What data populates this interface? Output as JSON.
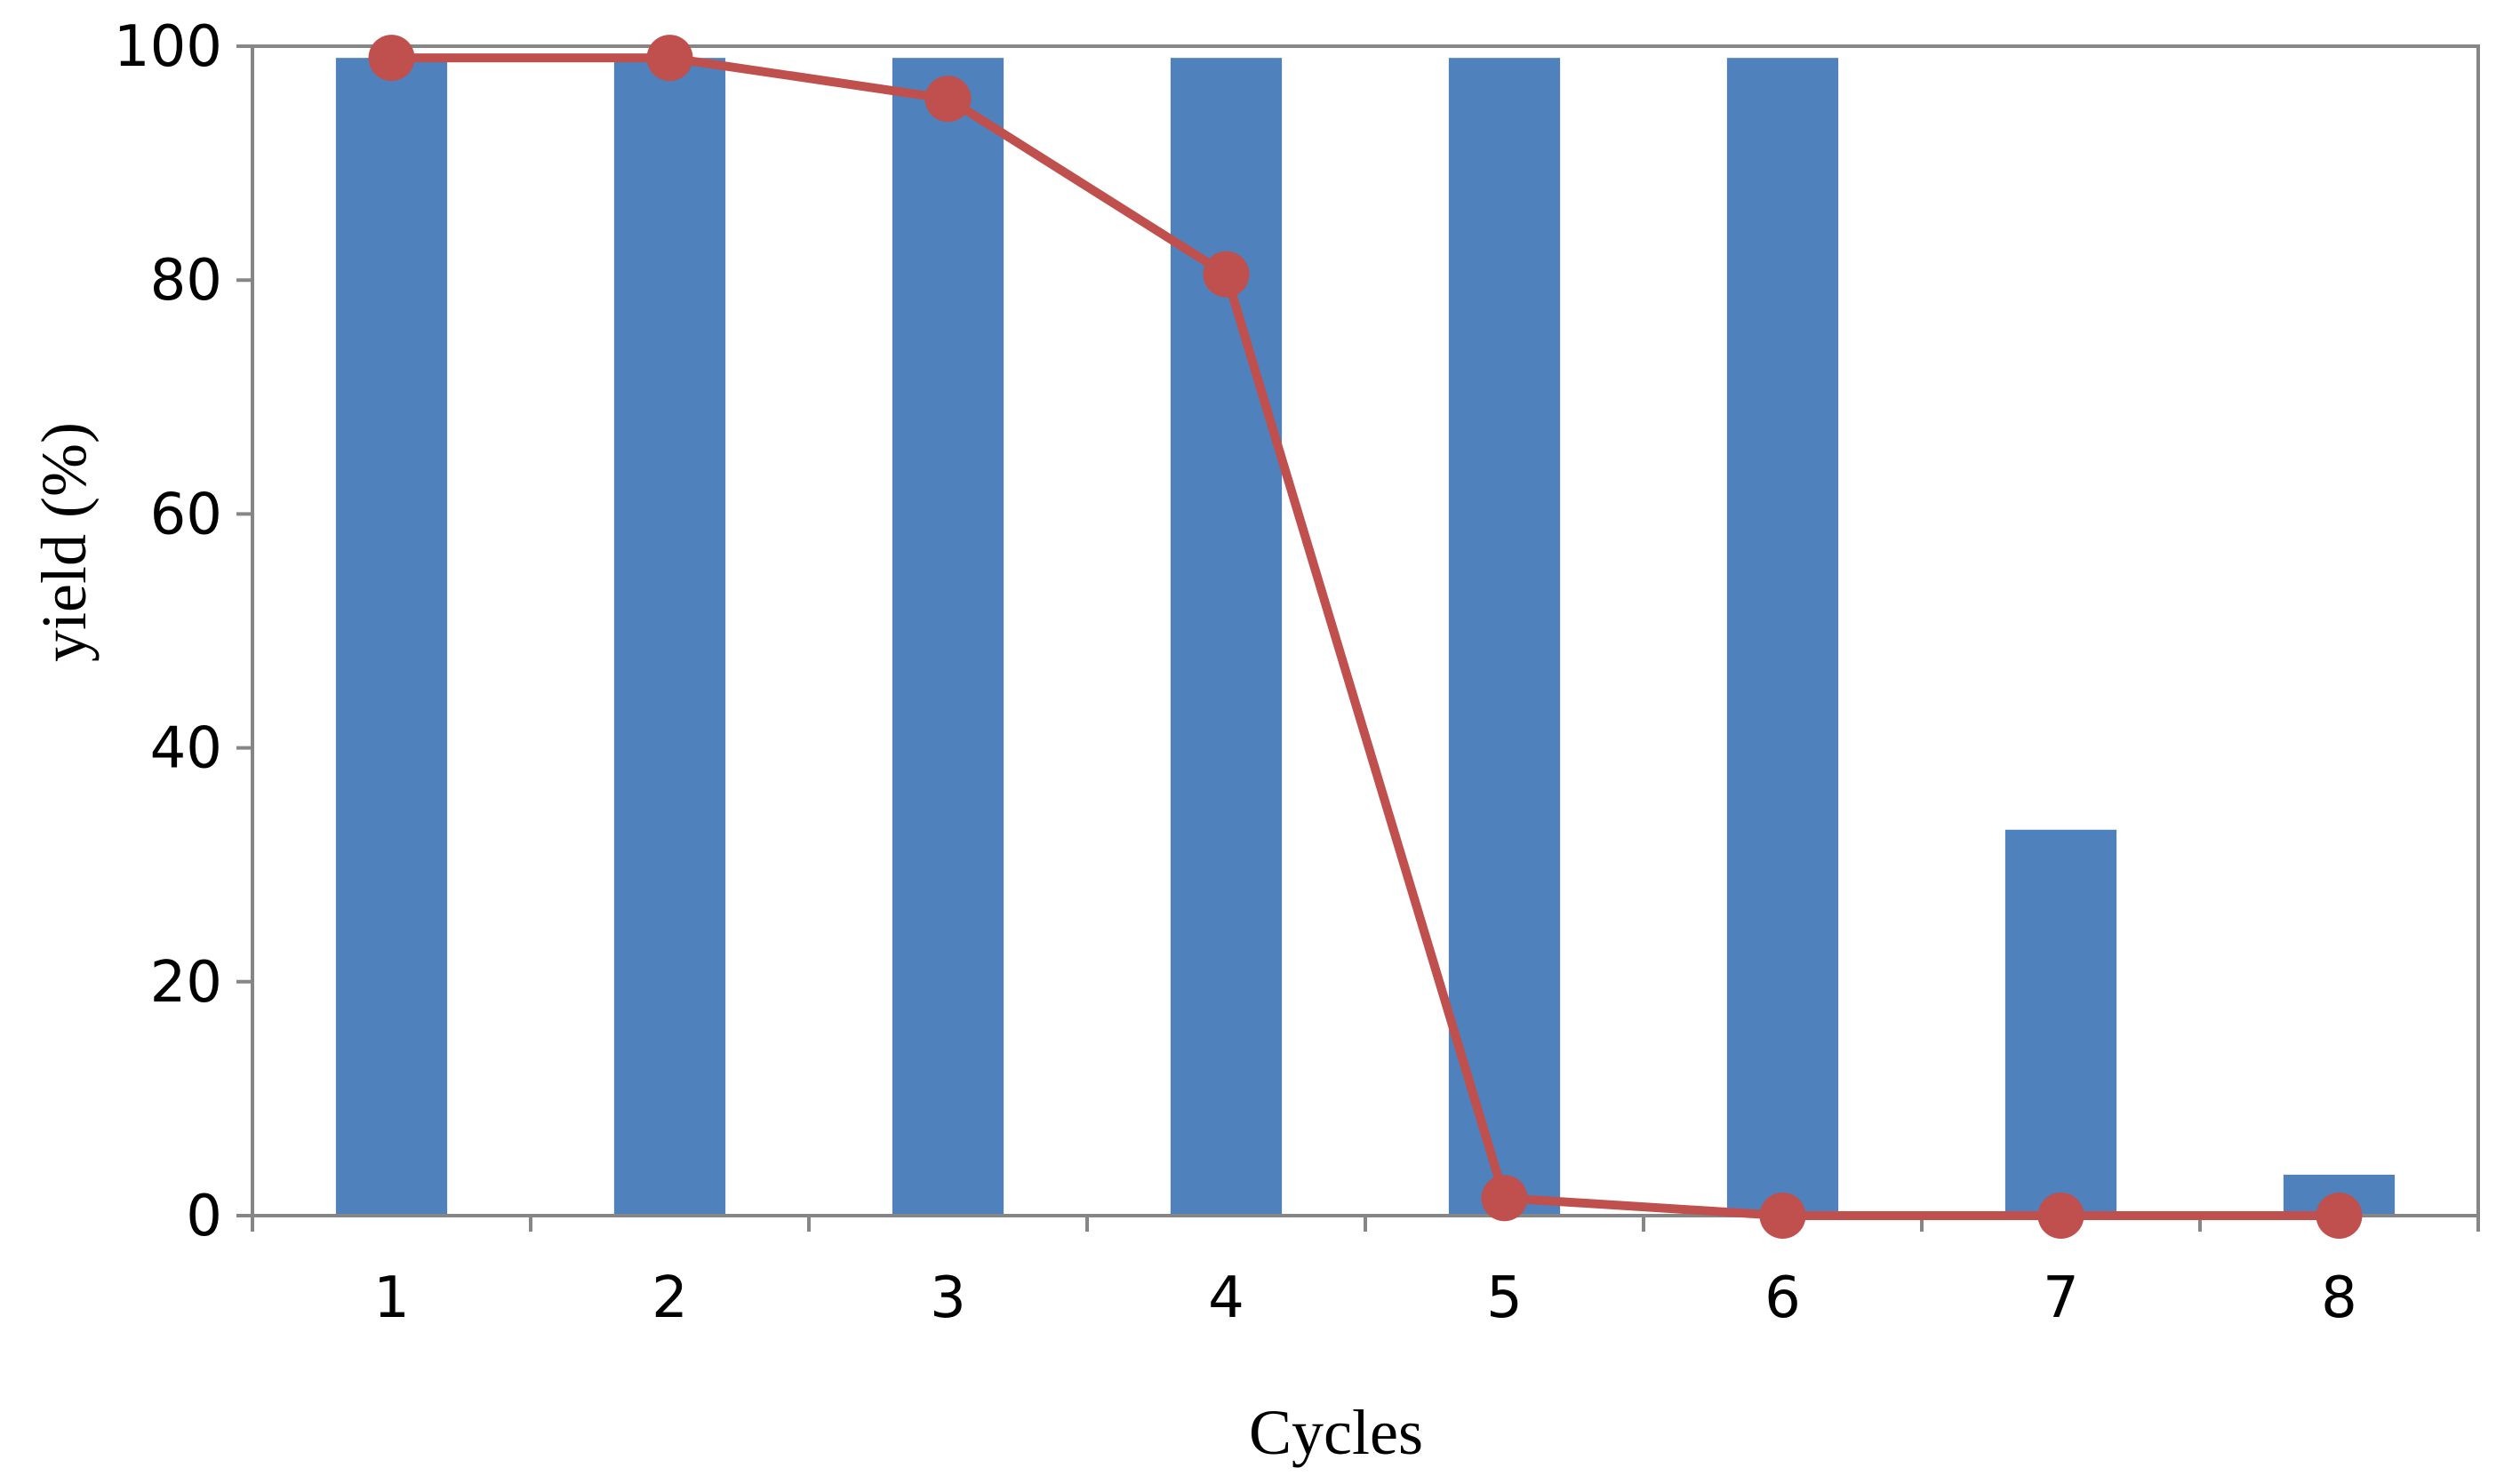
{
  "chart_data": {
    "type": "bar",
    "title": "",
    "xlabel": "Cycles",
    "ylabel": "yield (%)",
    "ylim": [
      0,
      100
    ],
    "yticks": [
      0,
      20,
      40,
      60,
      80,
      100
    ],
    "categories": [
      "1",
      "2",
      "3",
      "4",
      "5",
      "6",
      "7",
      "8"
    ],
    "series": [
      {
        "name": "bars",
        "type": "bar",
        "color": "#4F81BD",
        "values": [
          99,
          99,
          99,
          99,
          99,
          99,
          33,
          3.5
        ]
      },
      {
        "name": "line",
        "type": "line",
        "color": "#C0504D",
        "values": [
          99,
          99,
          95.5,
          80.5,
          1.5,
          0,
          0,
          0
        ]
      }
    ],
    "legend": "none",
    "grid": false
  }
}
